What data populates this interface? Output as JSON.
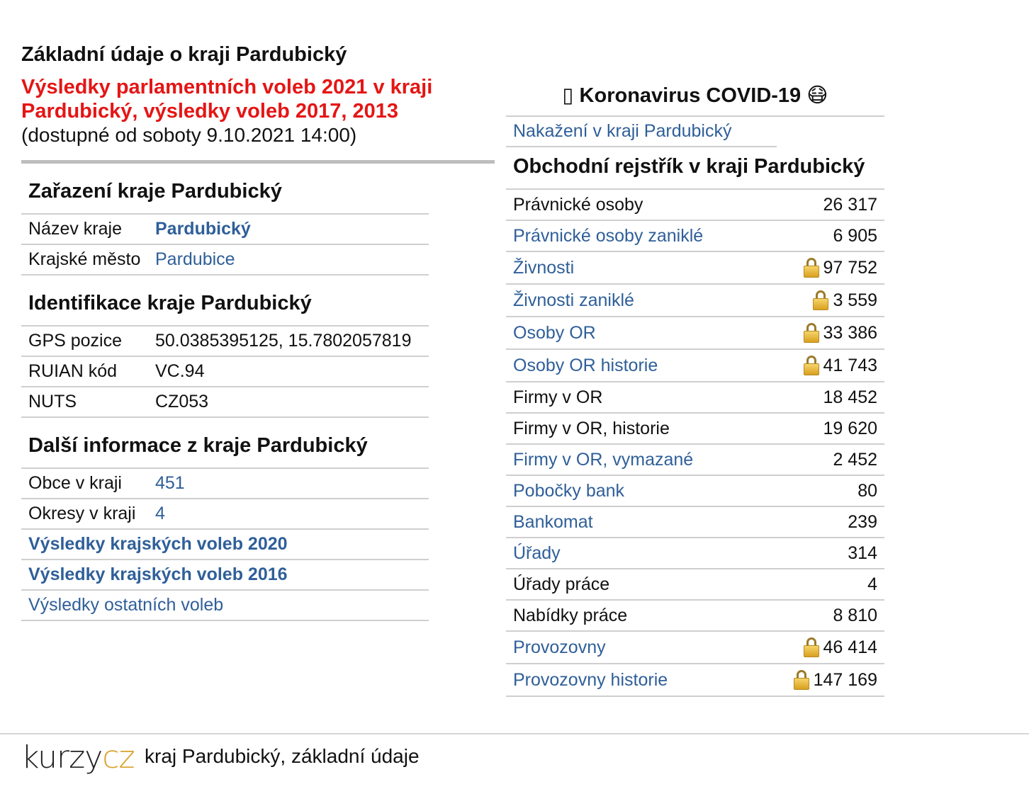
{
  "left": {
    "title": "Základní údaje o kraji Pardubický",
    "election_link": "Výsledky parlamentních voleb 2021 v kraji Pardubický, výsledky voleb 2017, 2013",
    "available": "(dostupné od soboty 9.10.2021 14:00)",
    "classification": {
      "heading": "Zařazení kraje Pardubický",
      "rows": [
        {
          "label": "Název kraje",
          "value": "Pardubický"
        },
        {
          "label": "Krajské město",
          "value": "Pardubice"
        }
      ]
    },
    "identification": {
      "heading": "Identifikace kraje Pardubický",
      "rows": [
        {
          "label": "GPS pozice",
          "value": "50.0385395125, 15.7802057819"
        },
        {
          "label": "RUIAN kód",
          "value": "VC.94"
        },
        {
          "label": "NUTS",
          "value": "CZ053"
        }
      ]
    },
    "more": {
      "heading": "Další informace z kraje Pardubický",
      "rows": [
        {
          "label": "Obce v kraji",
          "value": "451"
        },
        {
          "label": "Okresy v kraji",
          "value": "4"
        }
      ],
      "links": [
        "Výsledky krajských voleb 2020",
        "Výsledky krajských voleb 2016",
        "Výsledky ostatních voleb"
      ]
    }
  },
  "right": {
    "covid_heading": "Koronavirus COVID-19",
    "covid_link": "Nakažení v kraji Pardubický",
    "register_heading": "Obchodní rejstřík v kraji Pardubický",
    "rows": [
      {
        "label": "Právnické osoby",
        "value": "26 317",
        "link": false,
        "locked": false
      },
      {
        "label": "Právnické osoby zaniklé",
        "value": "6 905",
        "link": true,
        "locked": false
      },
      {
        "label": "Živnosti",
        "value": "97 752",
        "link": true,
        "locked": true
      },
      {
        "label": "Živnosti zaniklé",
        "value": "3 559",
        "link": true,
        "locked": true
      },
      {
        "label": "Osoby OR",
        "value": "33 386",
        "link": true,
        "locked": true
      },
      {
        "label": "Osoby OR historie",
        "value": "41 743",
        "link": true,
        "locked": true
      },
      {
        "label": "Firmy v OR",
        "value": "18 452",
        "link": false,
        "locked": false
      },
      {
        "label": "Firmy v OR, historie",
        "value": "19 620",
        "link": false,
        "locked": false
      },
      {
        "label": "Firmy v OR, vymazané",
        "value": "2 452",
        "link": true,
        "locked": false
      },
      {
        "label": "Pobočky bank",
        "value": "80",
        "link": true,
        "locked": false
      },
      {
        "label": "Bankomat",
        "value": "239",
        "link": true,
        "locked": false
      },
      {
        "label": "Úřady",
        "value": "314",
        "link": true,
        "locked": false
      },
      {
        "label": "Úřady práce",
        "value": "4",
        "link": false,
        "locked": false
      },
      {
        "label": "Nabídky práce",
        "value": "8 810",
        "link": false,
        "locked": false
      },
      {
        "label": "Provozovny",
        "value": "46 414",
        "link": true,
        "locked": true
      },
      {
        "label": "Provozovny historie",
        "value": "147 169",
        "link": true,
        "locked": true
      }
    ]
  },
  "footer": {
    "logo_part1": "kurzy",
    "logo_part2": "cz",
    "text": "kraj Pardubický, základní údaje"
  },
  "colors": {
    "link": "#2f5f99",
    "alert": "#e51515",
    "logo_accent": "#d8a22a"
  }
}
